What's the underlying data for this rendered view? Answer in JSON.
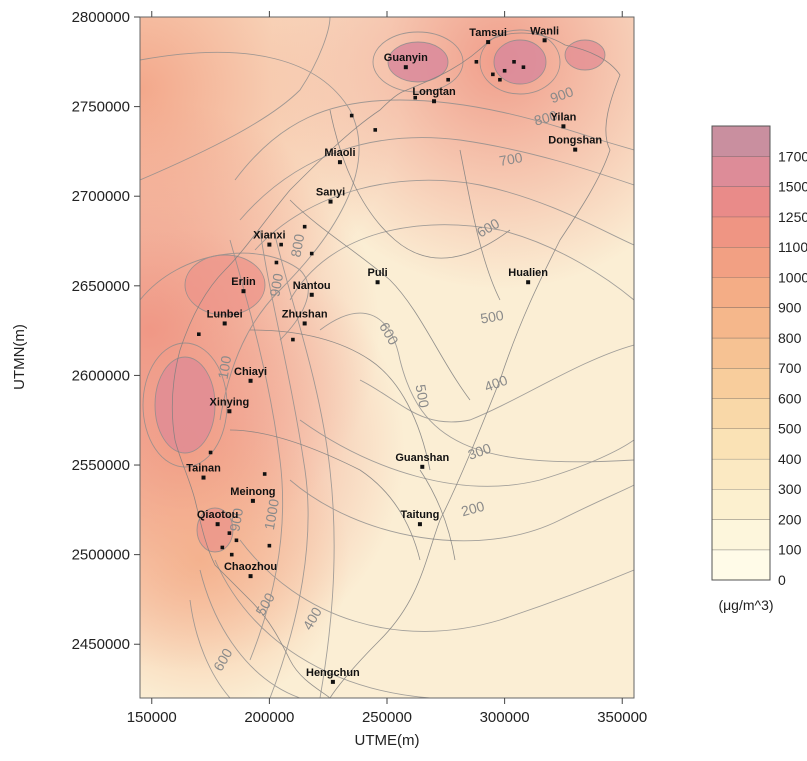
{
  "x_axis": {
    "label": "UTME(m)",
    "range": [
      145000,
      355000
    ],
    "ticks": [
      "150000",
      "200000",
      "250000",
      "300000",
      "350000"
    ],
    "tick_values": [
      150000,
      200000,
      250000,
      300000,
      350000
    ]
  },
  "y_axis": {
    "label": "UTMN(m)",
    "range": [
      2420000,
      2800000
    ],
    "ticks": [
      "2800000",
      "2750000",
      "2700000",
      "2650000",
      "2600000",
      "2550000",
      "2500000",
      "2450000"
    ],
    "tick_values": [
      2800000,
      2750000,
      2700000,
      2650000,
      2600000,
      2550000,
      2500000,
      2450000
    ]
  },
  "places": [
    {
      "name": "Tamsui",
      "x": 293000,
      "y": 2786000
    },
    {
      "name": "Wanli",
      "x": 317000,
      "y": 2787000
    },
    {
      "name": "Guanyin",
      "x": 258000,
      "y": 2772000
    },
    {
      "name": "Longtan",
      "x": 270000,
      "y": 2753000
    },
    {
      "name": "Yilan",
      "x": 325000,
      "y": 2739000
    },
    {
      "name": "Dongshan",
      "x": 330000,
      "y": 2726000
    },
    {
      "name": "Miaoli",
      "x": 230000,
      "y": 2719000
    },
    {
      "name": "Sanyi",
      "x": 226000,
      "y": 2697000
    },
    {
      "name": "Xianxi",
      "x": 200000,
      "y": 2673000
    },
    {
      "name": "Erlin",
      "x": 189000,
      "y": 2647000
    },
    {
      "name": "Nantou",
      "x": 218000,
      "y": 2645000
    },
    {
      "name": "Puli",
      "x": 246000,
      "y": 2652000
    },
    {
      "name": "Hualien",
      "x": 310000,
      "y": 2652000
    },
    {
      "name": "Lunbei",
      "x": 181000,
      "y": 2629000
    },
    {
      "name": "Zhushan",
      "x": 215000,
      "y": 2629000
    },
    {
      "name": "Chiayi",
      "x": 192000,
      "y": 2597000
    },
    {
      "name": "Xinying",
      "x": 183000,
      "y": 2580000
    },
    {
      "name": "Tainan",
      "x": 172000,
      "y": 2543000
    },
    {
      "name": "Guanshan",
      "x": 265000,
      "y": 2549000
    },
    {
      "name": "Meinong",
      "x": 193000,
      "y": 2530000
    },
    {
      "name": "Qiaotou",
      "x": 178000,
      "y": 2517000
    },
    {
      "name": "Taitung",
      "x": 264000,
      "y": 2517000
    },
    {
      "name": "Chaozhou",
      "x": 192000,
      "y": 2488000
    },
    {
      "name": "Hengchun",
      "x": 227000,
      "y": 2429000
    }
  ],
  "contour_labels": [
    {
      "text": "900",
      "x": 325000,
      "y": 2754000,
      "angle": -20
    },
    {
      "text": "800",
      "x": 318000,
      "y": 2741000,
      "angle": -15
    },
    {
      "text": "700",
      "x": 303000,
      "y": 2718000,
      "angle": -10
    },
    {
      "text": "600",
      "x": 294000,
      "y": 2680000,
      "angle": -30
    },
    {
      "text": "600",
      "x": 249000,
      "y": 2622000,
      "angle": 60
    },
    {
      "text": "500",
      "x": 295000,
      "y": 2630000,
      "angle": -10
    },
    {
      "text": "500",
      "x": 263000,
      "y": 2588000,
      "angle": 80
    },
    {
      "text": "400",
      "x": 297000,
      "y": 2593000,
      "angle": -20
    },
    {
      "text": "300",
      "x": 290000,
      "y": 2555000,
      "angle": -20
    },
    {
      "text": "200",
      "x": 287000,
      "y": 2523000,
      "angle": -15
    },
    {
      "text": "400",
      "x": 220000,
      "y": 2463000,
      "angle": -60
    },
    {
      "text": "500",
      "x": 200000,
      "y": 2471000,
      "angle": -60
    },
    {
      "text": "600",
      "x": 182000,
      "y": 2440000,
      "angle": -60
    },
    {
      "text": "100",
      "x": 183000,
      "y": 2604000,
      "angle": -80
    },
    {
      "text": "1000",
      "x": 203000,
      "y": 2522000,
      "angle": -80
    },
    {
      "text": "900",
      "x": 205000,
      "y": 2650000,
      "angle": -80
    },
    {
      "text": "800",
      "x": 214000,
      "y": 2672000,
      "angle": -80
    },
    {
      "text": "900",
      "x": 188000,
      "y": 2519000,
      "angle": -80
    }
  ],
  "legend": {
    "unit": "(μg/m^3)",
    "levels": [
      "0",
      "100",
      "200",
      "300",
      "400",
      "500",
      "600",
      "700",
      "800",
      "900",
      "1000",
      "1100",
      "1250",
      "1500",
      "1700"
    ],
    "colors": [
      "#fffbe8",
      "#fdf6dc",
      "#fcf0cf",
      "#fbe9c2",
      "#fae2b5",
      "#f9d8a8",
      "#f8cd9c",
      "#f6c293",
      "#f5b78b",
      "#f4ad86",
      "#f2a083",
      "#ef9583",
      "#e98b89",
      "#dd8c98",
      "#c98f9f"
    ]
  },
  "colors": {
    "outside_fill": "#ffffff",
    "contour_line": "#8c8c8c",
    "coast_line": "#8a8a8a",
    "marker": "#111111"
  }
}
